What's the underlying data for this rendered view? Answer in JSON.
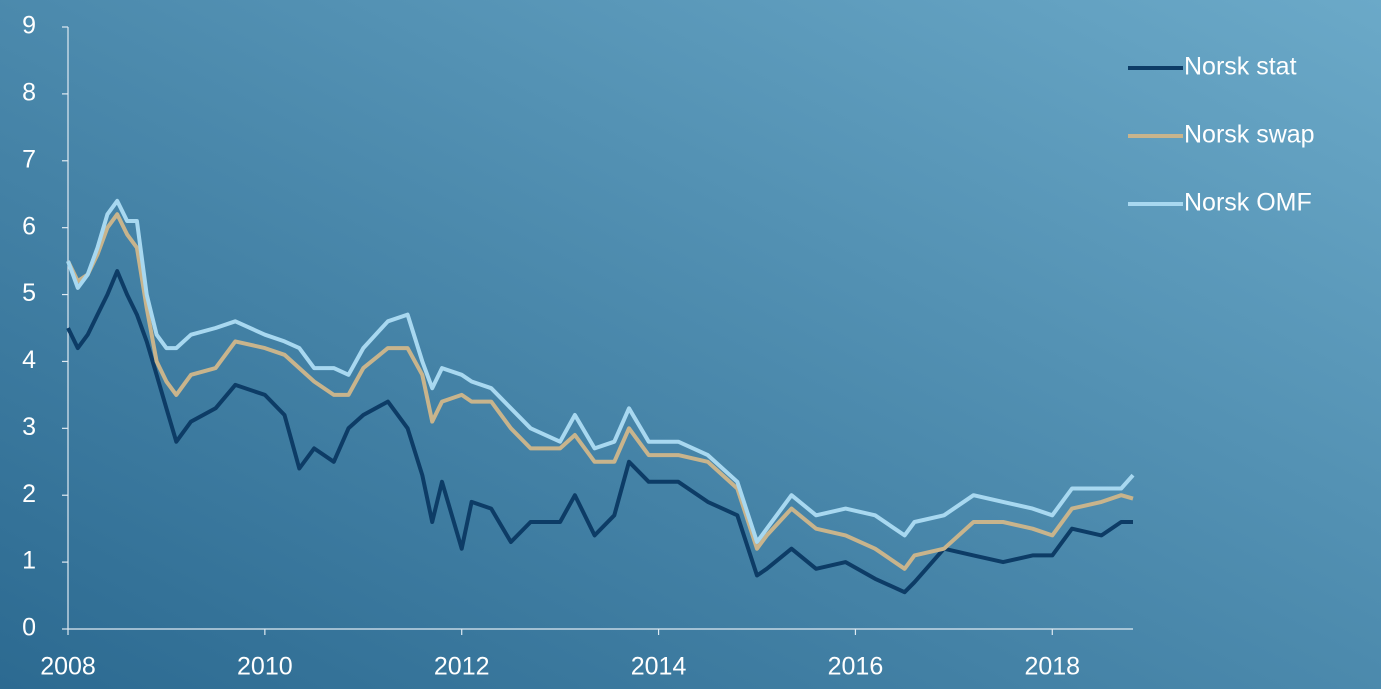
{
  "chart_data": {
    "type": "line",
    "x": [
      2008.0,
      2008.1,
      2008.2,
      2008.3,
      2008.4,
      2008.5,
      2008.6,
      2008.7,
      2008.8,
      2008.9,
      2009.0,
      2009.1,
      2009.25,
      2009.5,
      2009.7,
      2010.0,
      2010.2,
      2010.35,
      2010.5,
      2010.7,
      2010.85,
      2011.0,
      2011.25,
      2011.45,
      2011.6,
      2011.7,
      2011.8,
      2012.0,
      2012.1,
      2012.3,
      2012.5,
      2012.7,
      2013.0,
      2013.15,
      2013.35,
      2013.55,
      2013.7,
      2013.9,
      2014.2,
      2014.5,
      2014.8,
      2015.0,
      2015.1,
      2015.35,
      2015.6,
      2015.9,
      2016.2,
      2016.5,
      2016.6,
      2016.9,
      2017.2,
      2017.5,
      2017.8,
      2018.0,
      2018.2,
      2018.5,
      2018.7,
      2018.82
    ],
    "series": [
      {
        "name": "Norsk stat",
        "color": "#0d3c66",
        "values": [
          4.5,
          4.2,
          4.4,
          4.7,
          5.0,
          5.35,
          5.0,
          4.7,
          4.3,
          3.8,
          3.3,
          2.8,
          3.1,
          3.3,
          3.65,
          3.5,
          3.2,
          2.4,
          2.7,
          2.5,
          3.0,
          3.2,
          3.4,
          3.0,
          2.3,
          1.6,
          2.2,
          1.2,
          1.9,
          1.8,
          1.3,
          1.6,
          1.6,
          2.0,
          1.4,
          1.7,
          2.5,
          2.2,
          2.2,
          1.9,
          1.7,
          0.8,
          0.9,
          1.2,
          0.9,
          1.0,
          0.75,
          0.55,
          0.7,
          1.2,
          1.1,
          1.0,
          1.1,
          1.1,
          1.5,
          1.4,
          1.6,
          1.6
        ]
      },
      {
        "name": "Norsk swap",
        "color": "#c8b48c",
        "values": [
          5.5,
          5.2,
          5.3,
          5.6,
          6.0,
          6.2,
          5.9,
          5.7,
          4.8,
          4.0,
          3.7,
          3.5,
          3.8,
          3.9,
          4.3,
          4.2,
          4.1,
          3.9,
          3.7,
          3.5,
          3.5,
          3.9,
          4.2,
          4.2,
          3.8,
          3.1,
          3.4,
          3.5,
          3.4,
          3.4,
          3.0,
          2.7,
          2.7,
          2.9,
          2.5,
          2.5,
          3.0,
          2.6,
          2.6,
          2.5,
          2.1,
          1.2,
          1.4,
          1.8,
          1.5,
          1.4,
          1.2,
          0.9,
          1.1,
          1.2,
          1.6,
          1.6,
          1.5,
          1.4,
          1.8,
          1.9,
          2.0,
          1.95
        ]
      },
      {
        "name": "Norsk OMF",
        "color": "#a8d8f0",
        "values": [
          5.5,
          5.1,
          5.3,
          5.7,
          6.2,
          6.4,
          6.1,
          6.1,
          5.0,
          4.4,
          4.2,
          4.2,
          4.4,
          4.5,
          4.6,
          4.4,
          4.3,
          4.2,
          3.9,
          3.9,
          3.8,
          4.2,
          4.6,
          4.7,
          4.0,
          3.6,
          3.9,
          3.8,
          3.7,
          3.6,
          3.3,
          3.0,
          2.8,
          3.2,
          2.7,
          2.8,
          3.3,
          2.8,
          2.8,
          2.6,
          2.2,
          1.3,
          1.5,
          2.0,
          1.7,
          1.8,
          1.7,
          1.4,
          1.6,
          1.7,
          2.0,
          1.9,
          1.8,
          1.7,
          2.1,
          2.1,
          2.1,
          2.3
        ]
      }
    ],
    "xlim": [
      2008,
      2018.82
    ],
    "xticks": [
      2008,
      2010,
      2012,
      2014,
      2016,
      2018
    ],
    "ylim": [
      0,
      9
    ],
    "yticks": [
      0,
      1,
      2,
      3,
      4,
      5,
      6,
      7,
      8,
      9
    ],
    "legend": "right"
  }
}
